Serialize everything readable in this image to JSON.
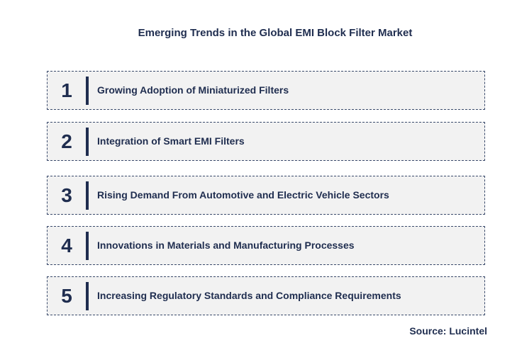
{
  "title": "Emerging Trends in the Global EMI Block Filter Market",
  "items": [
    {
      "number": "1",
      "label": "Growing Adoption of Miniaturized Filters"
    },
    {
      "number": "2",
      "label": "Integration of Smart EMI Filters"
    },
    {
      "number": "3",
      "label": "Rising Demand From Automotive and Electric Vehicle Sectors"
    },
    {
      "number": "4",
      "label": "Innovations in Materials and Manufacturing Processes"
    },
    {
      "number": "5",
      "label": "Increasing Regulatory Standards and Compliance Requirements"
    }
  ],
  "source": "Source: Lucintel"
}
